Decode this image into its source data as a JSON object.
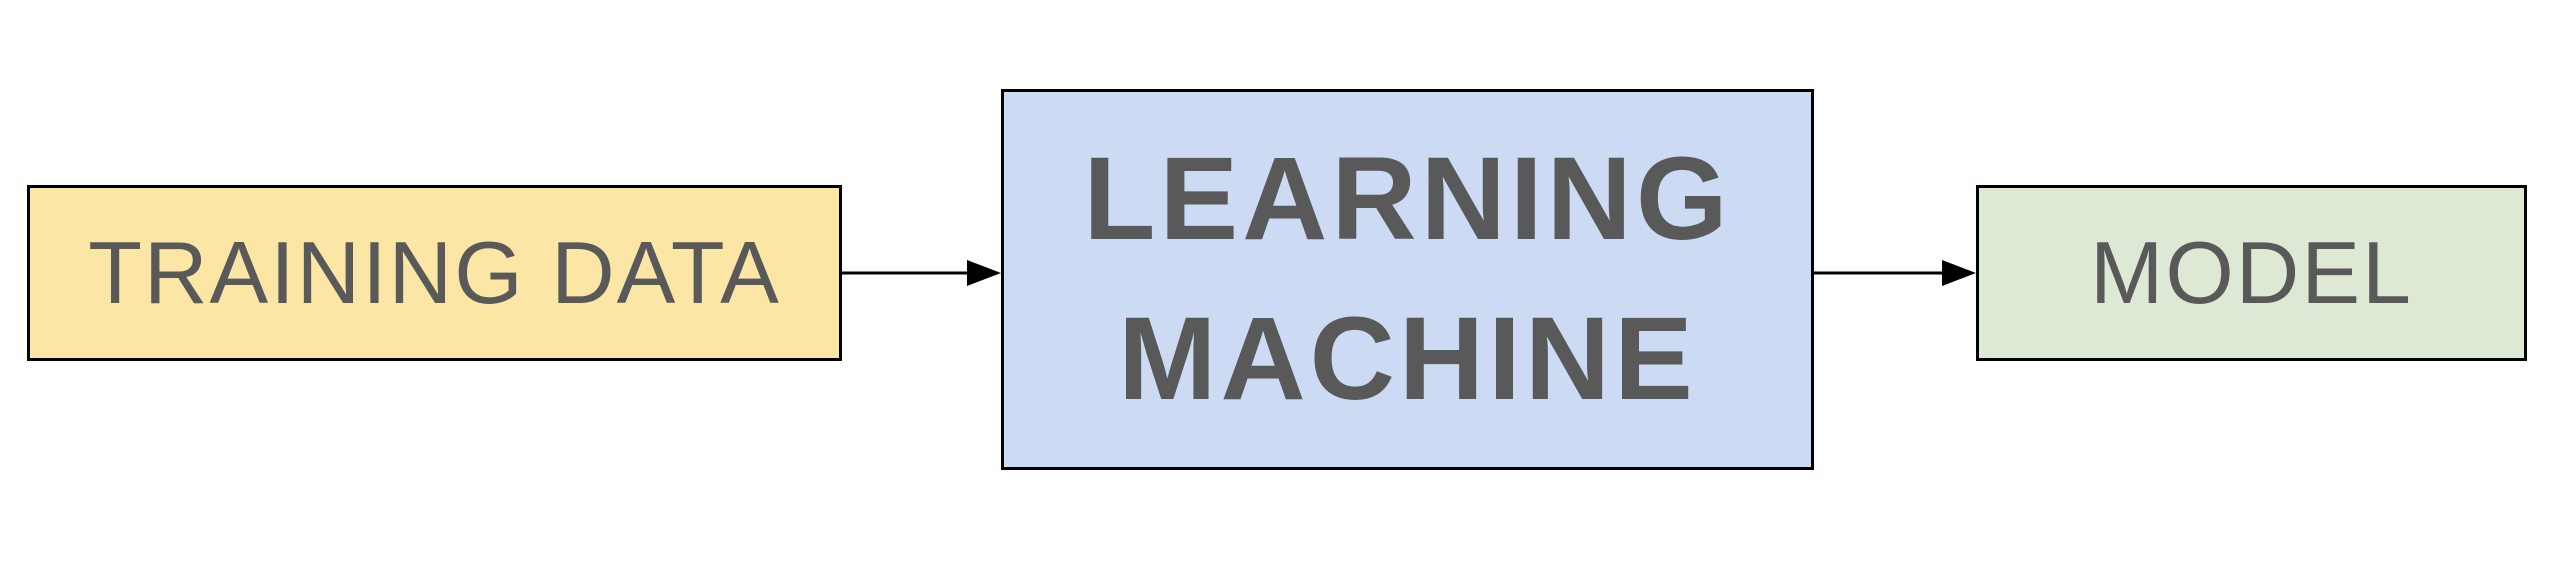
{
  "colors": {
    "training_fill": "#fbe6a6",
    "learning_fill": "#cddaf3",
    "model_fill": "#dde9d5",
    "text": "#595959",
    "stroke": "#000000"
  },
  "nodes": {
    "training_data": {
      "label": "TRAINING DATA"
    },
    "learning_machine": {
      "line1": "LEARNING",
      "line2": "MACHINE"
    },
    "model": {
      "label": "MODEL"
    }
  },
  "edges": [
    {
      "from": "training_data",
      "to": "learning_machine"
    },
    {
      "from": "learning_machine",
      "to": "model"
    }
  ]
}
